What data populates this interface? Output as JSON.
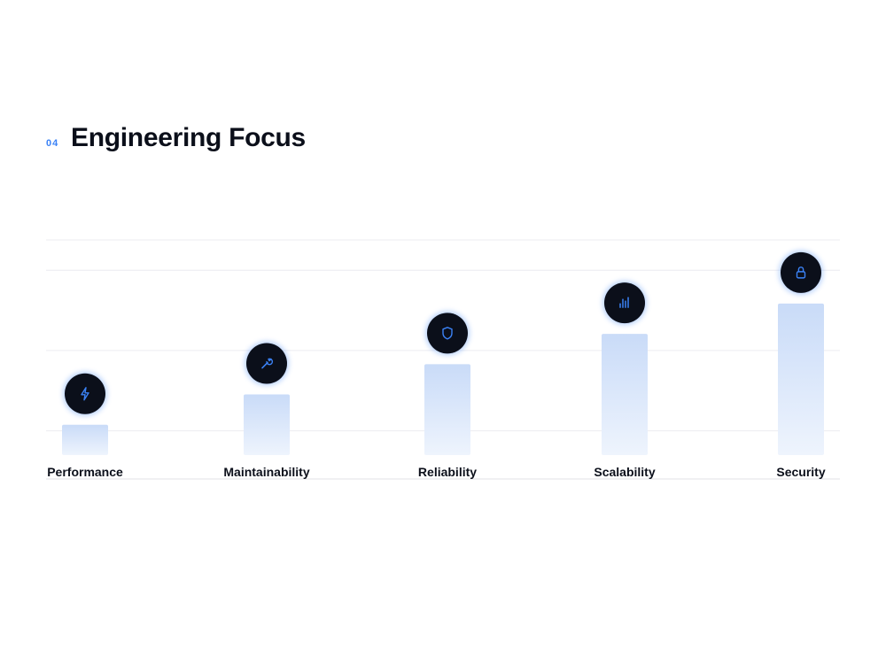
{
  "header": {
    "section_number": "04",
    "title": "Engineering Focus"
  },
  "colors": {
    "accent": "#3b82f6",
    "bar_top": "#c9dbf8",
    "bar_bottom": "#eef4fd",
    "icon_bg": "#0b0f1a",
    "gridline": "#ececf0"
  },
  "chart_data": {
    "type": "bar",
    "title": "",
    "xlabel": "",
    "ylabel": "",
    "categories": [
      "Performance",
      "Maintainability",
      "Reliability",
      "Scalability",
      "Security"
    ],
    "values": [
      1,
      2,
      3,
      4,
      5
    ],
    "icons": [
      "lightning-icon",
      "wrench-icon",
      "shield-icon",
      "bar-chart-icon",
      "lock-icon"
    ],
    "ylim": [
      0,
      7.1
    ],
    "grid": true,
    "gridlines": [
      0.8,
      3.45,
      6.1
    ]
  }
}
